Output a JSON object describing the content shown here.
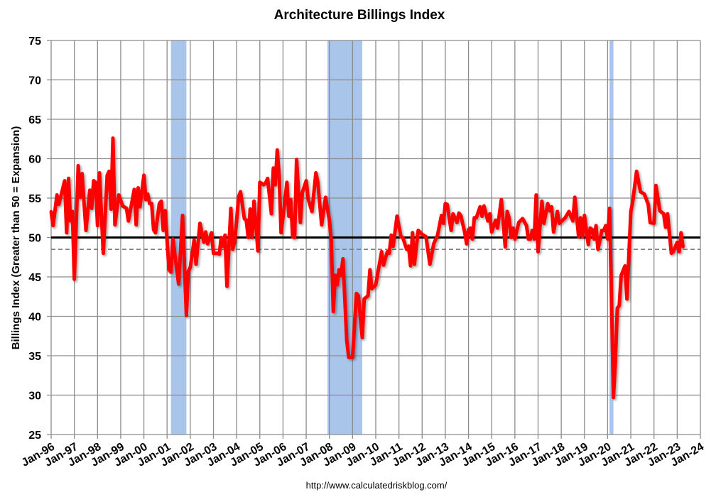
{
  "chart_data": {
    "type": "line",
    "title": "Architecture Billings Index",
    "ylabel": "Billings Index (Greater than 50 = Expansion)",
    "xlabel": "",
    "source": "http://www.calculatedriskblog.com/",
    "ylim": [
      25,
      75
    ],
    "yticks": [
      "25",
      "30",
      "35",
      "40",
      "45",
      "50",
      "55",
      "60",
      "65",
      "70",
      "75"
    ],
    "xlim": [
      "1996-01",
      "2024-01"
    ],
    "xticks": [
      "Jan-96",
      "Jan-97",
      "Jan-98",
      "Jan-99",
      "Jan-00",
      "Jan-01",
      "Jan-02",
      "Jan-03",
      "Jan-04",
      "Jan-05",
      "Jan-06",
      "Jan-07",
      "Jan-08",
      "Jan-09",
      "Jan-10",
      "Jan-11",
      "Jan-12",
      "Jan-13",
      "Jan-14",
      "Jan-15",
      "Jan-16",
      "Jan-17",
      "Jan-18",
      "Jan-19",
      "Jan-20",
      "Jan-21",
      "Jan-22",
      "Jan-23",
      "Jan-24"
    ],
    "grid": true,
    "reference_lines": [
      {
        "value": 50,
        "style": "solid",
        "color": "#000000"
      },
      {
        "value": 48.5,
        "style": "dashed",
        "color": "#7f7f7f"
      }
    ],
    "shaded_periods": [
      {
        "start": "2001-03",
        "end": "2001-11"
      },
      {
        "start": "2007-12",
        "end": "2009-06"
      },
      {
        "start": "2020-02",
        "end": "2020-04"
      }
    ],
    "colors": {
      "series": "#ff0000",
      "shade": "#a9c5ea",
      "grid": "#8c8c8c"
    },
    "series": [
      {
        "points": [
          [
            "1996-01",
            53.3
          ],
          [
            "1996-02",
            51.5
          ],
          [
            "1996-04",
            55.4
          ],
          [
            "1996-05",
            54.2
          ],
          [
            "1996-08",
            57.2
          ],
          [
            "1996-09",
            50.6
          ],
          [
            "1996-10",
            57.5
          ],
          [
            "1996-11",
            52.1
          ],
          [
            "1996-12",
            53.3
          ],
          [
            "1997-01",
            44.7
          ],
          [
            "1997-03",
            59.1
          ],
          [
            "1997-04",
            55.1
          ],
          [
            "1997-05",
            58.1
          ],
          [
            "1997-07",
            50.9
          ],
          [
            "1997-09",
            56
          ],
          [
            "1997-10",
            53.7
          ],
          [
            "1997-11",
            57.2
          ],
          [
            "1997-12",
            57
          ],
          [
            "1998-01",
            51.5
          ],
          [
            "1998-02",
            58.2
          ],
          [
            "1998-04",
            48
          ],
          [
            "1998-06",
            57.9
          ],
          [
            "1998-07",
            58.4
          ],
          [
            "1998-08",
            53.6
          ],
          [
            "1998-09",
            62.6
          ],
          [
            "1998-10",
            51.6
          ],
          [
            "1998-12",
            55.4
          ],
          [
            "1999-02",
            54
          ],
          [
            "1999-04",
            53.7
          ],
          [
            "1999-05",
            52.1
          ],
          [
            "1999-08",
            56.1
          ],
          [
            "1999-09",
            51.6
          ],
          [
            "1999-10",
            56.3
          ],
          [
            "1999-11",
            53.9
          ],
          [
            "2000-01",
            57.9
          ],
          [
            "2000-02",
            54.8
          ],
          [
            "2000-03",
            55.5
          ],
          [
            "2000-04",
            54.3
          ],
          [
            "2000-05",
            54.3
          ],
          [
            "2000-06",
            51
          ],
          [
            "2000-07",
            50.6
          ],
          [
            "2000-09",
            54.3
          ],
          [
            "2000-10",
            54.6
          ],
          [
            "2000-11",
            50.9
          ],
          [
            "2000-12",
            53.4
          ],
          [
            "2001-02",
            45.9
          ],
          [
            "2001-03",
            45.6
          ],
          [
            "2001-04",
            49.8
          ],
          [
            "2001-07",
            44.1
          ],
          [
            "2001-09",
            52.8
          ],
          [
            "2001-11",
            40.1
          ],
          [
            "2001-12",
            45.7
          ],
          [
            "2002-01",
            46.2
          ],
          [
            "2002-03",
            49.7
          ],
          [
            "2002-04",
            46.6
          ],
          [
            "2002-06",
            51.8
          ],
          [
            "2002-08",
            49.4
          ],
          [
            "2002-09",
            50.7
          ],
          [
            "2002-10",
            49.2
          ],
          [
            "2002-12",
            50.6
          ],
          [
            "2003-01",
            48
          ],
          [
            "2003-03",
            48
          ],
          [
            "2003-04",
            47.9
          ],
          [
            "2003-05",
            50
          ],
          [
            "2003-06",
            48.9
          ],
          [
            "2003-07",
            50.3
          ],
          [
            "2003-08",
            43.8
          ],
          [
            "2003-10",
            53.7
          ],
          [
            "2003-11",
            48.5
          ],
          [
            "2003-12",
            49.5
          ],
          [
            "2004-01",
            52.1
          ],
          [
            "2004-02",
            55.2
          ],
          [
            "2004-03",
            55.8
          ],
          [
            "2004-05",
            52.4
          ],
          [
            "2004-06",
            52.2
          ],
          [
            "2004-07",
            50
          ],
          [
            "2004-08",
            53.6
          ],
          [
            "2004-09",
            50
          ],
          [
            "2004-10",
            54.6
          ],
          [
            "2004-12",
            48.3
          ],
          [
            "2005-01",
            57
          ],
          [
            "2005-03",
            56.7
          ],
          [
            "2005-04",
            56.9
          ],
          [
            "2005-05",
            57.5
          ],
          [
            "2005-07",
            53
          ],
          [
            "2005-08",
            58.8
          ],
          [
            "2005-09",
            56.7
          ],
          [
            "2005-10",
            61.1
          ],
          [
            "2005-11",
            57.9
          ],
          [
            "2005-12",
            50.6
          ],
          [
            "2006-02",
            54.6
          ],
          [
            "2006-03",
            57
          ],
          [
            "2006-04",
            52.7
          ],
          [
            "2006-05",
            54.8
          ],
          [
            "2006-06",
            50.1
          ],
          [
            "2006-07",
            50
          ],
          [
            "2006-08",
            59.9
          ],
          [
            "2006-10",
            51.9
          ],
          [
            "2006-11",
            55.7
          ],
          [
            "2007-01",
            57.2
          ],
          [
            "2007-02",
            54.9
          ],
          [
            "2007-04",
            53.3
          ],
          [
            "2007-06",
            58.2
          ],
          [
            "2007-07",
            57
          ],
          [
            "2007-09",
            51.6
          ],
          [
            "2007-11",
            55.1
          ],
          [
            "2008-01",
            52.2
          ],
          [
            "2008-02",
            49.5
          ],
          [
            "2008-03",
            40.6
          ],
          [
            "2008-04",
            45.2
          ],
          [
            "2008-05",
            44
          ],
          [
            "2008-06",
            45.9
          ],
          [
            "2008-07",
            45.2
          ],
          [
            "2008-08",
            47.3
          ],
          [
            "2008-10",
            36.9
          ],
          [
            "2008-11",
            34.8
          ],
          [
            "2009-01",
            34.8
          ],
          [
            "2009-03",
            42.9
          ],
          [
            "2009-04",
            42.6
          ],
          [
            "2009-06",
            37.3
          ],
          [
            "2009-07",
            42.2
          ],
          [
            "2009-09",
            42.6
          ],
          [
            "2009-10",
            45.9
          ],
          [
            "2009-11",
            43.5
          ],
          [
            "2010-01",
            44
          ],
          [
            "2010-04",
            48.2
          ],
          [
            "2010-05",
            46.5
          ],
          [
            "2010-07",
            48.2
          ],
          [
            "2010-08",
            48
          ],
          [
            "2010-09",
            50.3
          ],
          [
            "2010-10",
            48.9
          ],
          [
            "2010-12",
            52.7
          ],
          [
            "2011-02",
            50.1
          ],
          [
            "2011-03",
            50
          ],
          [
            "2011-05",
            48.5
          ],
          [
            "2011-06",
            48.9
          ],
          [
            "2011-07",
            46.4
          ],
          [
            "2011-08",
            50.6
          ],
          [
            "2011-09",
            46.6
          ],
          [
            "2011-11",
            50.9
          ],
          [
            "2012-01",
            50.4
          ],
          [
            "2012-03",
            50.1
          ],
          [
            "2012-05",
            46.6
          ],
          [
            "2012-07",
            49.2
          ],
          [
            "2012-09",
            50.3
          ],
          [
            "2012-11",
            52.8
          ],
          [
            "2012-12",
            51.8
          ],
          [
            "2013-01",
            54.3
          ],
          [
            "2013-02",
            54.2
          ],
          [
            "2013-04",
            50.9
          ],
          [
            "2013-05",
            53
          ],
          [
            "2013-07",
            51.9
          ],
          [
            "2013-08",
            53.1
          ],
          [
            "2013-09",
            52.8
          ],
          [
            "2013-11",
            50.7
          ],
          [
            "2013-12",
            49.2
          ],
          [
            "2014-01",
            51
          ],
          [
            "2014-02",
            51.2
          ],
          [
            "2014-03",
            49.8
          ],
          [
            "2014-04",
            52.5
          ],
          [
            "2014-05",
            52.5
          ],
          [
            "2014-07",
            53.9
          ],
          [
            "2014-08",
            52.7
          ],
          [
            "2014-09",
            54
          ],
          [
            "2014-11",
            52.1
          ],
          [
            "2014-12",
            53
          ],
          [
            "2015-01",
            50.7
          ],
          [
            "2015-03",
            52.2
          ],
          [
            "2015-04",
            51.2
          ],
          [
            "2015-06",
            54.8
          ],
          [
            "2015-08",
            48.8
          ],
          [
            "2015-09",
            53.3
          ],
          [
            "2015-10",
            52.5
          ],
          [
            "2015-11",
            50
          ],
          [
            "2015-12",
            51.2
          ],
          [
            "2016-01",
            49.8
          ],
          [
            "2016-03",
            51.9
          ],
          [
            "2016-05",
            52.4
          ],
          [
            "2016-07",
            51.5
          ],
          [
            "2016-08",
            49.8
          ],
          [
            "2016-09",
            49.8
          ],
          [
            "2016-10",
            50.9
          ],
          [
            "2016-11",
            49.8
          ],
          [
            "2016-12",
            55.4
          ],
          [
            "2017-01",
            48.2
          ],
          [
            "2017-03",
            54.6
          ],
          [
            "2017-04",
            51.8
          ],
          [
            "2017-06",
            54.3
          ],
          [
            "2017-07",
            53.4
          ],
          [
            "2017-08",
            53.9
          ],
          [
            "2017-09",
            50.7
          ],
          [
            "2017-11",
            53.3
          ],
          [
            "2017-12",
            51.8
          ],
          [
            "2018-03",
            52.5
          ],
          [
            "2018-05",
            53.3
          ],
          [
            "2018-06",
            52.7
          ],
          [
            "2018-07",
            52.1
          ],
          [
            "2018-08",
            55.1
          ],
          [
            "2018-10",
            50.1
          ],
          [
            "2018-11",
            52.5
          ],
          [
            "2018-12",
            50.1
          ],
          [
            "2019-01",
            52.8
          ],
          [
            "2019-03",
            49.1
          ],
          [
            "2019-04",
            51.2
          ],
          [
            "2019-05",
            51
          ],
          [
            "2019-06",
            49.8
          ],
          [
            "2019-07",
            51.5
          ],
          [
            "2019-08",
            48.5
          ],
          [
            "2019-10",
            50.9
          ],
          [
            "2019-11",
            50.9
          ],
          [
            "2019-12",
            51.5
          ],
          [
            "2020-01",
            49.8
          ],
          [
            "2020-02",
            53.7
          ],
          [
            "2020-03",
            42.3
          ],
          [
            "2020-04",
            29.7
          ],
          [
            "2020-05",
            34.2
          ],
          [
            "2020-06",
            41
          ],
          [
            "2020-07",
            41.4
          ],
          [
            "2020-08",
            45.2
          ],
          [
            "2020-10",
            46.4
          ],
          [
            "2020-11",
            42.2
          ],
          [
            "2021-01",
            53.3
          ],
          [
            "2021-02",
            54.6
          ],
          [
            "2021-04",
            58.4
          ],
          [
            "2021-06",
            55.8
          ],
          [
            "2021-08",
            55.5
          ],
          [
            "2021-10",
            54.2
          ],
          [
            "2021-11",
            51.9
          ],
          [
            "2022-01",
            51.8
          ],
          [
            "2022-02",
            56.6
          ],
          [
            "2022-04",
            53.4
          ],
          [
            "2022-06",
            53
          ],
          [
            "2022-07",
            51.3
          ],
          [
            "2022-08",
            53
          ],
          [
            "2022-10",
            48
          ],
          [
            "2022-11",
            48.2
          ],
          [
            "2023-01",
            49.4
          ],
          [
            "2023-02",
            48.2
          ],
          [
            "2023-03",
            50.6
          ],
          [
            "2023-04",
            48.8
          ]
        ]
      }
    ]
  }
}
